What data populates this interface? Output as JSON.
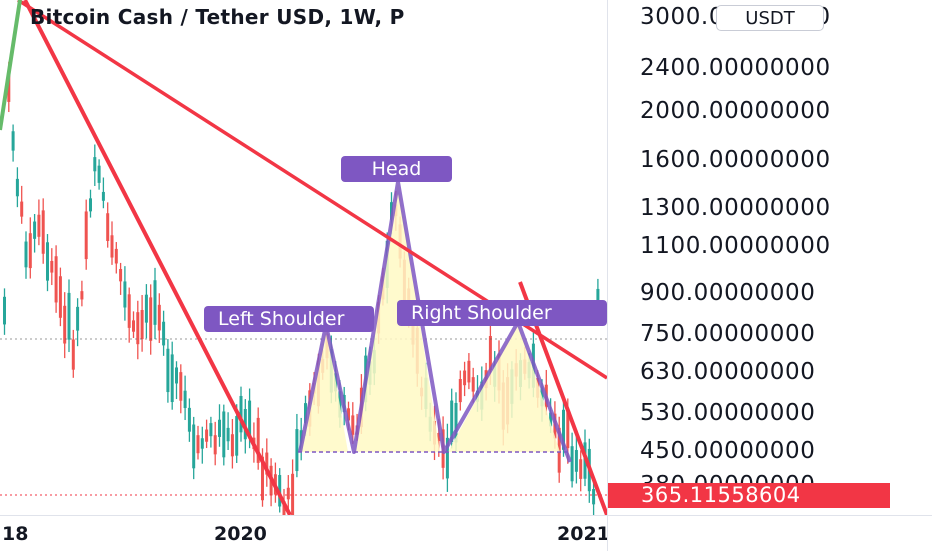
{
  "chart": {
    "title": "Bitcoin Cash / Tether USD, 1W, P",
    "currency": "USDT",
    "current_price": "365.11558604",
    "price_levels": [
      "3000.00000000",
      "2400.00000000",
      "2000.00000000",
      "1600.00000000",
      "1300.00000000",
      "1100.00000000",
      "900.00000000",
      "750.00000000",
      "630.00000000",
      "530.00000000",
      "450.00000000",
      "380.00000000"
    ],
    "time_labels": [
      "18",
      "2020",
      "2021"
    ],
    "annotations": {
      "left_shoulder": "Left Shoulder",
      "head": "Head",
      "right_shoulder": "Right Shoulder"
    },
    "colors": {
      "bull": "#26a69a",
      "bear": "#ef5350",
      "trendline": "#f23645",
      "pattern": "#7e57c2",
      "pattern_fill": "#fff9c4",
      "green_line": "#66bb6a"
    }
  }
}
